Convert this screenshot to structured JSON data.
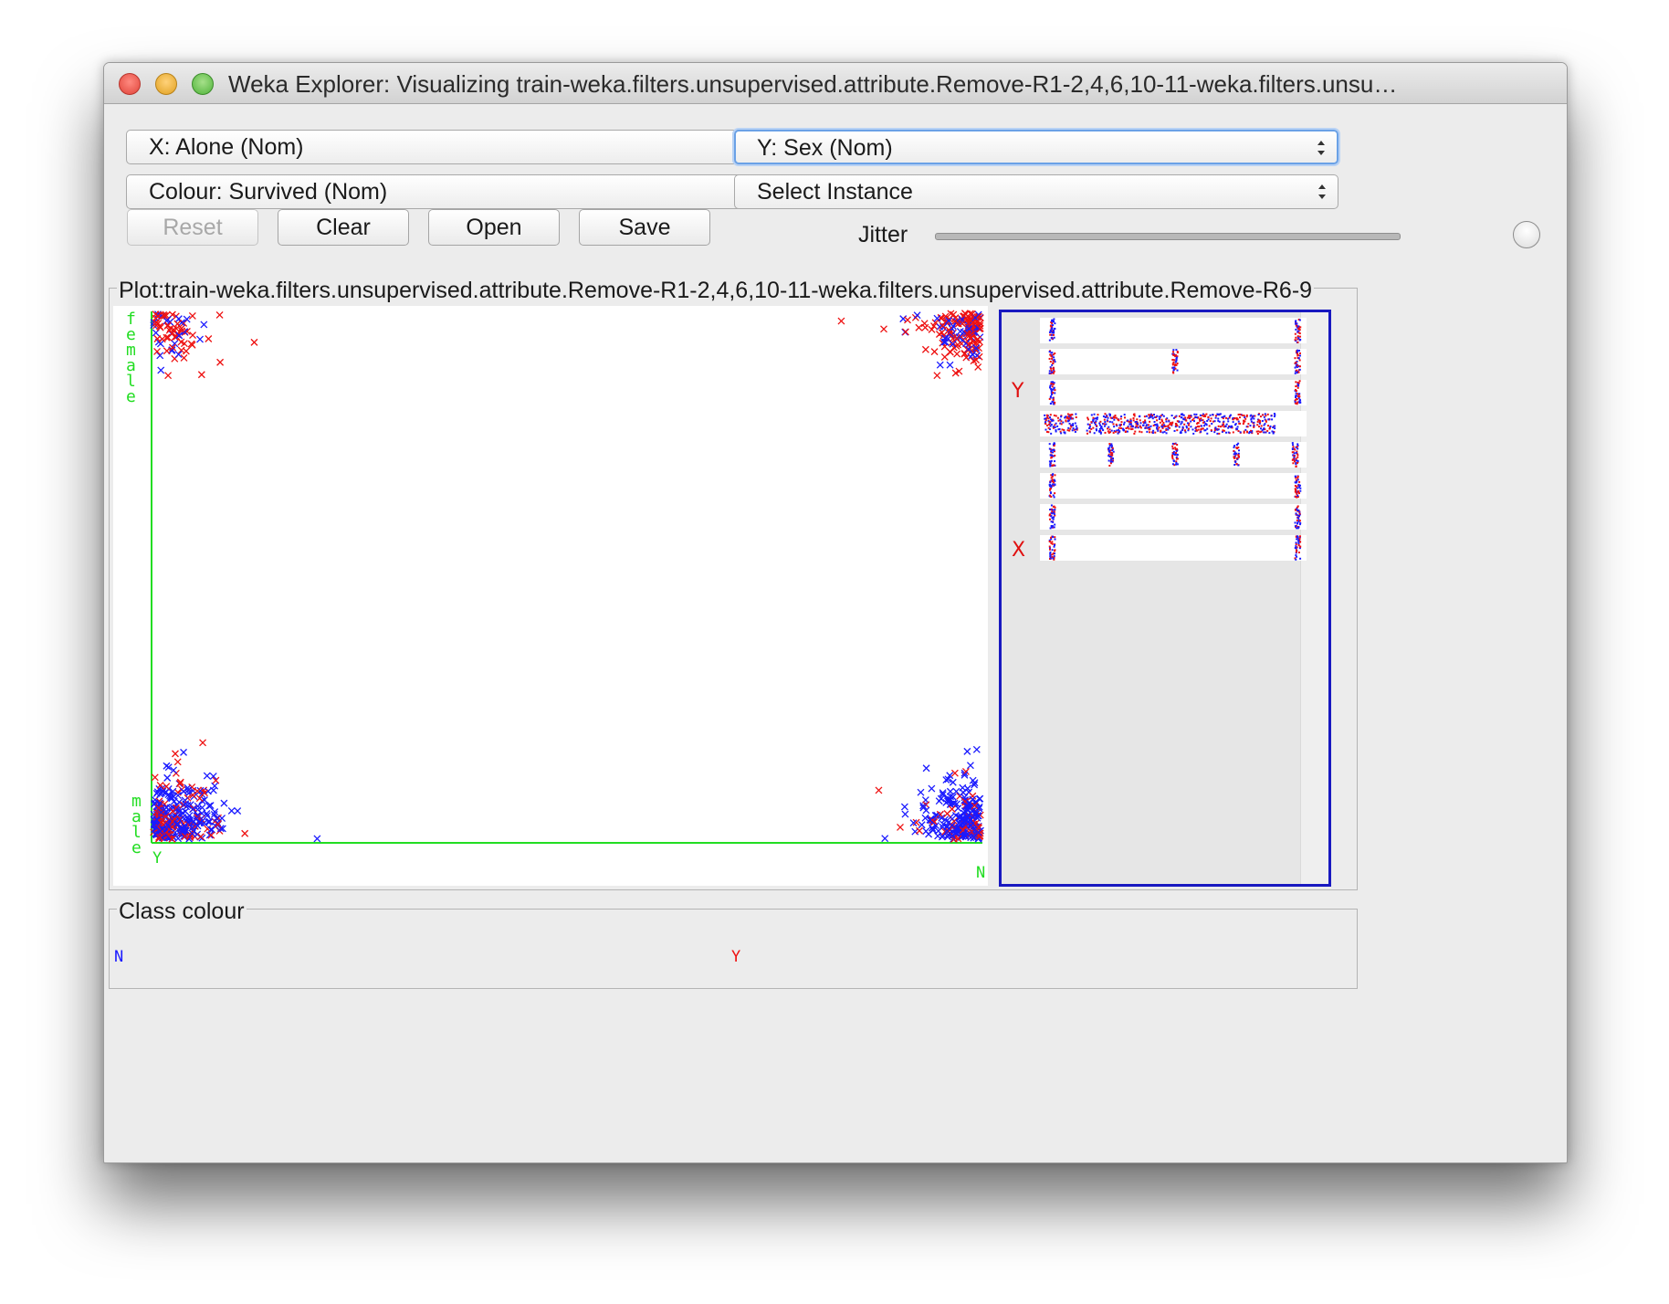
{
  "window": {
    "title": "Weka Explorer: Visualizing train-weka.filters.unsupervised.attribute.Remove-R1-2,4,6,10-11-weka.filters.unsu…"
  },
  "controls": {
    "x_select": "X: Alone (Nom)",
    "y_select": "Y: Sex (Nom)",
    "colour_select": "Colour: Survived (Nom)",
    "instance_select": "Select Instance",
    "reset_label": "Reset",
    "clear_label": "Clear",
    "open_label": "Open",
    "save_label": "Save",
    "jitter_label": "Jitter",
    "jitter_value": 1.0
  },
  "plot": {
    "legend": "Plot:train-weka.filters.unsupervised.attribute.Remove-R1-2,4,6,10-11-weka.filters.unsupervised.attribute.Remove-R6-9",
    "y_labels": [
      "female",
      "male"
    ],
    "x_labels": [
      "Y",
      "N"
    ],
    "axis_color": "#22dd22"
  },
  "matrix_panel": {
    "y_marker": "Y",
    "x_marker": "X"
  },
  "class_colour": {
    "legend": "Class colour",
    "classes": [
      {
        "name": "N",
        "color": "#1a1aff"
      },
      {
        "name": "Y",
        "color": "#ee1111"
      }
    ]
  },
  "chart_data": {
    "type": "scatter",
    "x_categories": [
      "Y",
      "N"
    ],
    "y_categories": [
      "female",
      "male"
    ],
    "color_attribute": "Survived",
    "color_classes": [
      "N",
      "Y"
    ],
    "colors": {
      "N": "#1a1aff",
      "Y": "#ee1111"
    },
    "jitter": "max",
    "clusters": [
      {
        "x": "Y",
        "y": "female",
        "density": "low",
        "mix": "mostly Y"
      },
      {
        "x": "N",
        "y": "female",
        "density": "high",
        "mix": "mostly Y"
      },
      {
        "x": "Y",
        "y": "male",
        "density": "high",
        "mix": "mostly N"
      },
      {
        "x": "N",
        "y": "male",
        "density": "high",
        "mix": "mostly N"
      }
    ],
    "grid": false
  }
}
